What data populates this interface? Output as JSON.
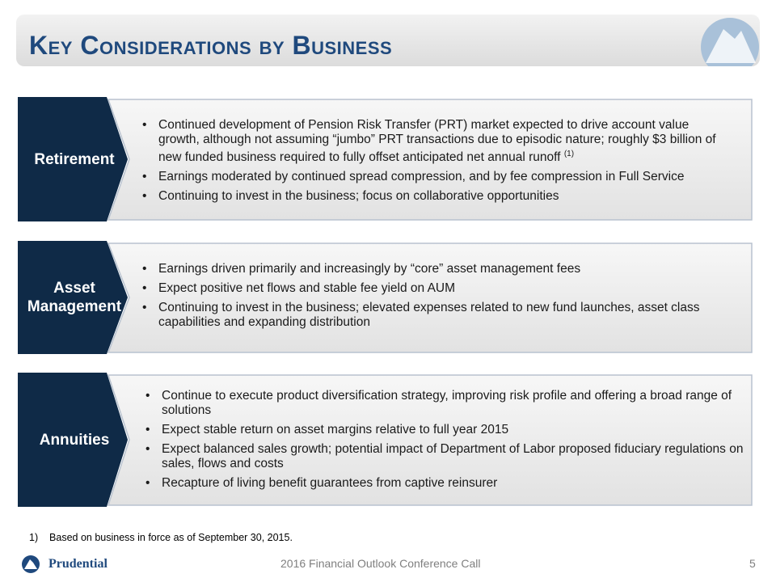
{
  "header": {
    "title": "Key Considerations by Business"
  },
  "sections": [
    {
      "label": "Retirement",
      "bullets": [
        "Continued development of Pension Risk Transfer (PRT) market expected to drive account value growth, although not assuming “jumbo” PRT transactions due to episodic nature; roughly $3 billion of new funded business required to fully offset anticipated net annual runoff",
        "Earnings moderated by continued spread compression, and by fee compression in Full Service",
        "Continuing to invest in the business; focus on collaborative opportunities"
      ],
      "note_marker": "(1)"
    },
    {
      "label": "Asset Management",
      "bullets": [
        "Earnings driven primarily and increasingly by “core” asset management fees",
        "Expect positive net flows and stable fee yield on AUM",
        "Continuing to invest in the business; elevated expenses related to new fund launches, asset class capabilities and expanding distribution"
      ]
    },
    {
      "label": "Annuities",
      "bullets": [
        "Continue to execute product diversification strategy, improving risk profile and offering a broad range of solutions",
        "Expect stable return on asset margins relative to full year 2015",
        "Expect balanced sales growth; potential impact of Department of Labor proposed fiduciary regulations on sales, flows and costs",
        "Recapture of living benefit guarantees from captive reinsurer"
      ]
    }
  ],
  "footnote": {
    "marker": "1)",
    "text": "Based on business in force as of September 30, 2015."
  },
  "footer": {
    "logo": "Prudential",
    "event": "2016 Financial Outlook Conference Call",
    "page": "5"
  }
}
